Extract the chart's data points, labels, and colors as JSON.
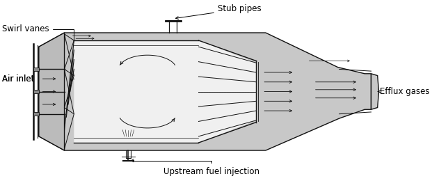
{
  "labels": {
    "swirl_vanes": "Swirl vanes",
    "air_inlet": "Air inlet",
    "stub_pipes": "Stub pipes",
    "efflux_gases": "Efflux gases",
    "upstream_fuel": "Upstream fuel injection"
  },
  "bg_color": "#ffffff",
  "outer_bg": "#c8c8c8",
  "inner_bg": "#d8d8d8",
  "white_bg": "#f0f0f0",
  "line_color": "#111111",
  "label_fontsize": 8.5,
  "fig_width": 6.21,
  "fig_height": 2.6
}
